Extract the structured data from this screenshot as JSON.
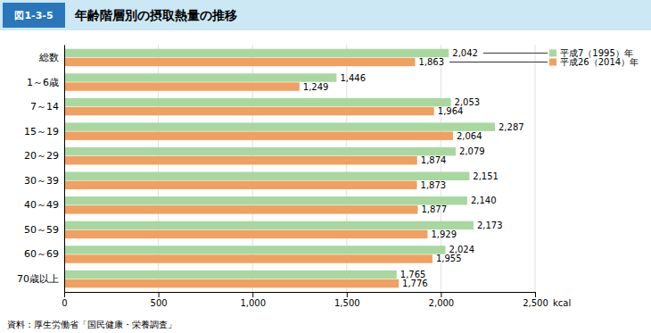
{
  "chart_data": {
    "type": "bar",
    "orientation": "horizontal",
    "title": "年齢階層別の摂取熱量の推移",
    "annotations": [
      "図1-3-5",
      "資料：厚生労働省「国民健康・栄養調査」"
    ],
    "xlabel": "kcal",
    "categories": [
      "総数",
      "1～6歳",
      "7～14",
      "15～19",
      "20～29",
      "30～39",
      "40～49",
      "50～59",
      "60～69",
      "70歳以上"
    ],
    "series": [
      {
        "name": "平成7（1995）年",
        "color": "#a8d8a0",
        "values": [
          2042,
          1446,
          2053,
          2287,
          2079,
          2151,
          2140,
          2173,
          2024,
          1765
        ],
        "value_labels": [
          "2,042",
          "1,446",
          "2,053",
          "2,287",
          "2,079",
          "2,151",
          "2,140",
          "2,173",
          "2,024",
          "1,765"
        ]
      },
      {
        "name": "平成26（2014）年",
        "color": "#f0a060",
        "values": [
          1863,
          1249,
          1964,
          2064,
          1874,
          1873,
          1877,
          1929,
          1955,
          1776
        ],
        "value_labels": [
          "1,863",
          "1,249",
          "1,964",
          "2,064",
          "1,874",
          "1,873",
          "1,877",
          "1,929",
          "1,955",
          "1,776"
        ]
      }
    ],
    "xlim": [
      0,
      2500
    ],
    "xticks": [
      0,
      500,
      {
        "value": 1000,
        "label": "1,000"
      },
      {
        "value": 1500,
        "label": "1,500"
      },
      {
        "value": 2000,
        "label": "2,000"
      },
      {
        "value": 2500,
        "label": "2,500"
      }
    ],
    "grid": true,
    "data_labels": true,
    "legend": "right"
  }
}
